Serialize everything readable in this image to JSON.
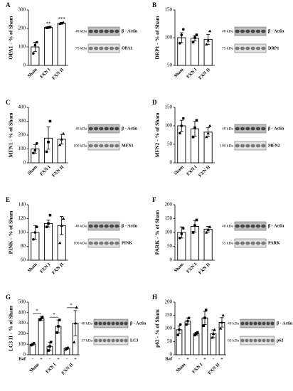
{
  "chart_data": [
    {
      "type": "bar",
      "panel": "A",
      "ylabel": "OPA1 - % of Sham",
      "categories": [
        "Sham",
        "FXN I",
        "FXN II"
      ],
      "values": [
        100,
        205,
        228
      ],
      "errors": [
        25,
        3,
        5
      ],
      "points": [
        [
          65,
          110,
          125
        ],
        [
          203,
          205,
          207
        ],
        [
          225,
          228,
          232
        ]
      ],
      "annotations": [
        null,
        "**",
        "***"
      ],
      "ylim": [
        0,
        300
      ],
      "yticks": [
        0,
        100,
        200,
        300
      ],
      "blot": [
        {
          "kda": "48 kDa",
          "protein": "β - Actin"
        },
        {
          "kda": "75 kDa",
          "protein": "OPA1"
        }
      ]
    },
    {
      "type": "bar",
      "panel": "B",
      "ylabel": "DRP1 - % of Sham",
      "categories": [
        "Sham",
        "FXN I",
        "FXN II"
      ],
      "values": [
        100,
        99,
        97
      ],
      "errors": [
        9,
        5,
        9
      ],
      "points": [
        [
          90,
          105,
          115
        ],
        [
          92,
          100,
          105
        ],
        [
          88,
          95,
          112
        ]
      ],
      "annotations": [
        null,
        null,
        null
      ],
      "ylim": [
        50,
        150
      ],
      "yticks": [
        50,
        100,
        150
      ],
      "blot": [
        {
          "kda": "48 kDa",
          "protein": "β - Actin"
        },
        {
          "kda": "75 kDa",
          "protein": "DRP1"
        }
      ]
    },
    {
      "type": "bar",
      "panel": "C",
      "ylabel": "MFN1 - % of Sham",
      "categories": [
        "Sham",
        "FXN I",
        "FXN II"
      ],
      "values": [
        100,
        178,
        170
      ],
      "errors": [
        30,
        80,
        35
      ],
      "points": [
        [
          70,
          90,
          140
        ],
        [
          80,
          150,
          300
        ],
        [
          130,
          170,
          210
        ]
      ],
      "annotations": [
        null,
        null,
        null
      ],
      "ylim": [
        0,
        400
      ],
      "yticks": [
        0,
        100,
        200,
        300,
        400
      ],
      "blot": [
        {
          "kda": "48 kDa",
          "protein": "β - Actin"
        },
        {
          "kda": "100 kDa",
          "protein": "MFN1"
        }
      ]
    },
    {
      "type": "bar",
      "panel": "D",
      "ylabel": "MFN2 - % of Sham",
      "categories": [
        "Sham",
        "FXN I",
        "FXN II"
      ],
      "values": [
        100,
        92,
        83
      ],
      "errors": [
        15,
        20,
        12
      ],
      "points": [
        [
          80,
          100,
          120
        ],
        [
          70,
          95,
          115
        ],
        [
          70,
          80,
          100
        ]
      ],
      "annotations": [
        null,
        null,
        null
      ],
      "ylim": [
        0,
        150
      ],
      "yticks": [
        0,
        50,
        100,
        150
      ],
      "blot": [
        {
          "kda": "48 kDa",
          "protein": "β - Actin"
        },
        {
          "kda": "100 kDa",
          "protein": "MFN2"
        }
      ]
    },
    {
      "type": "bar",
      "panel": "E",
      "ylabel": "PINK - % of Sham",
      "categories": [
        "Sham",
        "FXN I",
        "FXN II"
      ],
      "values": [
        100,
        113,
        110
      ],
      "errors": [
        10,
        5,
        13
      ],
      "points": [
        [
          90,
          100,
          108
        ],
        [
          108,
          113,
          125
        ],
        [
          85,
          110,
          120
        ]
      ],
      "annotations": [
        null,
        null,
        null
      ],
      "ylim": [
        60,
        140
      ],
      "yticks": [
        60,
        80,
        100,
        120,
        140
      ],
      "blot": [
        {
          "kda": "48 kDa",
          "protein": "β - Actin"
        },
        {
          "kda": "100 kDa",
          "protein": "PINK"
        }
      ]
    },
    {
      "type": "bar",
      "panel": "F",
      "ylabel": "PARK - % of Sham",
      "categories": [
        "Sham",
        "FXN I",
        "FXN II"
      ],
      "values": [
        100,
        122,
        112
      ],
      "errors": [
        20,
        20,
        10
      ],
      "points": [
        [
          80,
          95,
          115
        ],
        [
          100,
          125,
          145
        ],
        [
          100,
          110,
          120
        ]
      ],
      "annotations": [
        null,
        null,
        null
      ],
      "ylim": [
        0,
        200
      ],
      "yticks": [
        0,
        50,
        100,
        150,
        200
      ],
      "blot": [
        {
          "kda": "48 kDa",
          "protein": "β - Actin"
        },
        {
          "kda": "55 kDa",
          "protein": "PARK"
        }
      ]
    },
    {
      "type": "grouped_bar",
      "panel": "G",
      "ylabel": "LC3 II - % of Sham",
      "group_label": "Baf",
      "categories": [
        "Sham",
        "FXN I",
        "FXN II"
      ],
      "series": [
        {
          "name": "-",
          "values": [
            100,
            80,
            60
          ],
          "errors": [
            10,
            40,
            10
          ],
          "points": [
            [
              90,
              100,
              110
            ],
            [
              40,
              80,
              120
            ],
            [
              50,
              60,
              70
            ]
          ]
        },
        {
          "name": "+",
          "values": [
            345,
            270,
            300
          ],
          "errors": [
            20,
            60,
            120
          ],
          "points": [
            [
              330,
              345,
              360
            ],
            [
              210,
              270,
              330
            ],
            [
              120,
              300,
              450
            ]
          ]
        }
      ],
      "annotations": [
        "*",
        "*",
        "*"
      ],
      "ylim": [
        0,
        500
      ],
      "yticks": [
        0,
        100,
        200,
        300,
        400,
        500
      ],
      "blot": [
        {
          "kda": "48 kDa",
          "protein": "β - Actin"
        },
        {
          "kda": "17 kDa",
          "protein": "LC3"
        }
      ]
    },
    {
      "type": "grouped_bar",
      "panel": "H",
      "ylabel": "p62 - % of Sham",
      "group_label": "Baf",
      "categories": [
        "Sham",
        "FXN I",
        "FXN II"
      ],
      "series": [
        {
          "name": "-",
          "values": [
            95,
            80,
            80
          ],
          "errors": [
            15,
            5,
            15
          ],
          "points": [
            [
              75,
              95,
              115
            ],
            [
              75,
              80,
              85
            ],
            [
              65,
              80,
              95
            ]
          ]
        },
        {
          "name": "+",
          "values": [
            128,
            140,
            123
          ],
          "errors": [
            12,
            25,
            18
          ],
          "points": [
            [
              115,
              128,
              140
            ],
            [
              110,
              140,
              170
            ],
            [
              100,
              123,
              150
            ]
          ]
        }
      ],
      "annotations": [
        null,
        null,
        null
      ],
      "ylim": [
        0,
        200
      ],
      "yticks": [
        0,
        50,
        100,
        150,
        200
      ],
      "blot": [
        {
          "kda": "48 kDa",
          "protein": "β - Actin"
        },
        {
          "kda": "63 kDa",
          "protein": "p62"
        }
      ]
    }
  ]
}
